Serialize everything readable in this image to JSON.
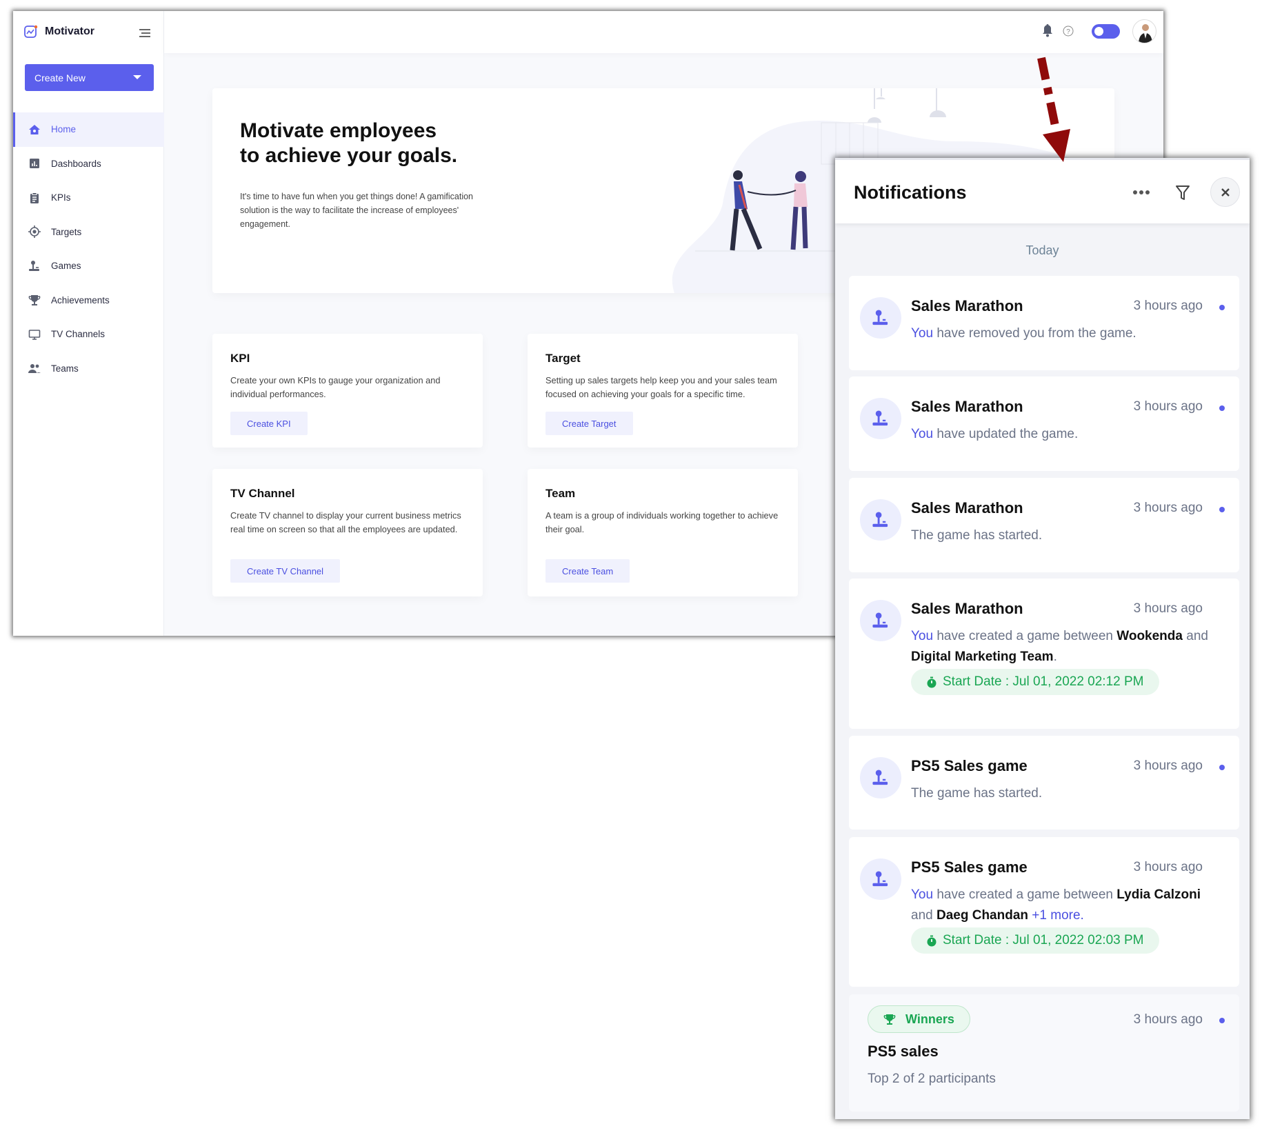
{
  "app": {
    "name": "Motivator",
    "create_new": "Create New"
  },
  "sidebar": {
    "items": [
      {
        "label": "Home",
        "icon": "home-icon",
        "active": true
      },
      {
        "label": "Dashboards",
        "icon": "dashboard-icon"
      },
      {
        "label": "KPIs",
        "icon": "clipboard-icon"
      },
      {
        "label": "Targets",
        "icon": "target-icon"
      },
      {
        "label": "Games",
        "icon": "joystick-icon"
      },
      {
        "label": "Achievements",
        "icon": "trophy-icon"
      },
      {
        "label": "TV Channels",
        "icon": "monitor-icon"
      },
      {
        "label": "Teams",
        "icon": "users-icon"
      }
    ]
  },
  "topbar": {
    "icons": [
      "bell-icon",
      "help-icon",
      "theme-toggle",
      "avatar"
    ],
    "toggle_on": true
  },
  "hero": {
    "title_line1": "Motivate employees",
    "title_line2": "to achieve your goals.",
    "body": "It's time to have fun when you get things done! A gamification solution is the way to facilitate the increase of employees' engagement."
  },
  "cards": [
    {
      "title": "KPI",
      "desc": "Create your own KPIs to gauge your organization and individual performances.",
      "button": "Create KPI"
    },
    {
      "title": "Target",
      "desc": "Setting up sales targets help keep you and your sales team focused on achieving your goals for a specific time.",
      "button": "Create Target"
    },
    {
      "title": "TV Channel",
      "desc": "Create TV channel to display your current business metrics real time on screen so that all the employees are updated.",
      "button": "Create TV Channel"
    },
    {
      "title": "Team",
      "desc": "A team is a group of individuals working together to achieve their goal.",
      "button": "Create Team"
    }
  ],
  "notifications": {
    "title": "Notifications",
    "section": "Today",
    "accent": "#5b5fec",
    "items": [
      {
        "title": "Sales Marathon",
        "time": "3 hours ago",
        "you": "You",
        "text": " have removed you from the game.",
        "unread": true
      },
      {
        "title": "Sales Marathon",
        "time": "3 hours ago",
        "you": "You",
        "text": " have updated the game.",
        "unread": true
      },
      {
        "title": "Sales Marathon",
        "time": "3 hours ago",
        "text": "The game has started.",
        "unread": true
      },
      {
        "title": "Sales Marathon",
        "time": "3 hours ago",
        "you": "You",
        "text": " have created a game between ",
        "b1": "Wookenda",
        "mid": " and ",
        "b2": "Digital Marketing Team",
        "end": ".",
        "start_date": "Start Date : Jul 01, 2022 02:12 PM",
        "unread": false
      },
      {
        "title": "PS5 Sales game",
        "time": "3 hours ago",
        "text": "The game has started.",
        "unread": true
      },
      {
        "title": "PS5 Sales game",
        "time": "3 hours ago",
        "you": "You",
        "text": " have created a game between ",
        "b1": "Lydia Calzoni",
        "mid": " and ",
        "b2": "Daeg Chandan",
        "more": " +1 more.",
        "start_date": "Start Date : Jul 01, 2022 02:03 PM",
        "unread": false
      }
    ],
    "winner": {
      "badge": "Winners",
      "time": "3 hours ago",
      "title": "PS5 sales",
      "text": "Top 2 of 2 participants",
      "unread": true
    }
  }
}
